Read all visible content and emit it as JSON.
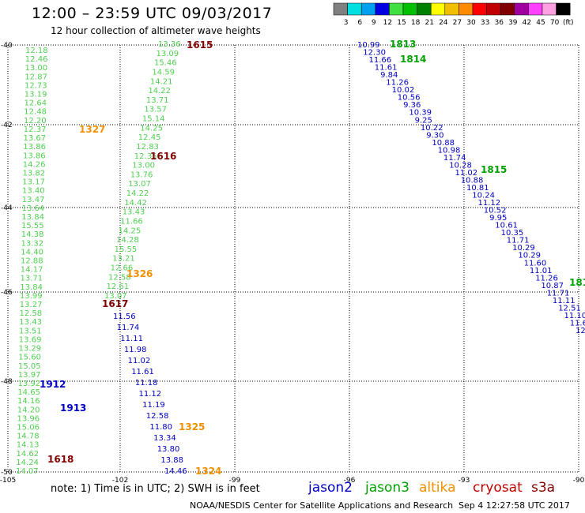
{
  "header": {
    "title": "12:00 – 23:59 UTC 09/03/2017",
    "subtitle": "12 hour collection of altimeter wave heights"
  },
  "color_scale": {
    "unit": "(ft)",
    "bins": [
      {
        "label": "3",
        "color": "#808080"
      },
      {
        "label": "6",
        "color": "#00e0e0"
      },
      {
        "label": "9",
        "color": "#00a0f0"
      },
      {
        "label": "12",
        "color": "#0000e0"
      },
      {
        "label": "15",
        "color": "#40e040"
      },
      {
        "label": "18",
        "color": "#00c000"
      },
      {
        "label": "21",
        "color": "#008000"
      },
      {
        "label": "24",
        "color": "#ffff00"
      },
      {
        "label": "27",
        "color": "#f0c000"
      },
      {
        "label": "30",
        "color": "#ff8c00"
      },
      {
        "label": "33",
        "color": "#ff0000"
      },
      {
        "label": "36",
        "color": "#c00000"
      },
      {
        "label": "39",
        "color": "#800000"
      },
      {
        "label": "42",
        "color": "#a000a0"
      },
      {
        "label": "45",
        "color": "#ff40ff"
      },
      {
        "label": "70",
        "color": "#ffa0e0"
      },
      {
        "label": "",
        "color": "#000000"
      }
    ]
  },
  "axes": {
    "lat_labels": [
      "-40",
      "-42",
      "-44",
      "-46",
      "-48",
      "-50"
    ],
    "lon_labels": [
      "-105",
      "-102",
      "-99",
      "-96",
      "-93",
      "-90"
    ]
  },
  "colors": {
    "jason2": "#0000c0",
    "jason3": "#00a000",
    "altika": "#f09000",
    "cryosat": "#c00000",
    "s3a": "#800000",
    "light": "#50d050"
  },
  "tracks": {
    "t1": [
      "12.18",
      "12.46",
      "13.00",
      "12.87",
      "12.73",
      "13.19",
      "12.64",
      "12.48",
      "12.20",
      "12.37",
      "13.67",
      "13.86",
      "13.86",
      "14.26",
      "13.82",
      "13.17",
      "13.40",
      "13.47",
      "13.64",
      "13.84",
      "15.55",
      "14.38",
      "13.32",
      "14.40",
      "12.88",
      "14.17",
      "13.71",
      "13.84",
      "13.99",
      "13.27",
      "12.58",
      "13.43",
      "13.51",
      "13.69",
      "13.29",
      "15.60",
      "15.05",
      "13.97",
      "13.92",
      "14.65",
      "14.16",
      "14.20",
      "13.96",
      "15.06",
      "14.78",
      "14.13",
      "14.62",
      "14.24",
      "14.07"
    ],
    "t2": [
      "13.36",
      "13.09",
      "15.46",
      "14.59",
      "14.21",
      "14.22",
      "13.71",
      "13.57",
      "15.14",
      "14.25",
      "12.45",
      "12.83",
      "12.35",
      "13.00",
      "13.76",
      "13.07",
      "14.22",
      "14.42",
      "13.43",
      "11.66",
      "14.25",
      "14.28",
      "15.55",
      "13.21",
      "12.66",
      "12.58",
      "12.61",
      "13.07",
      "11.56",
      "11.74",
      "11.11",
      "11.98",
      "11.02",
      "11.61",
      "11.18",
      "11.12",
      "11.19",
      "12.58",
      "11.80",
      "13.34",
      "13.80",
      "13.88",
      "14.46"
    ],
    "t3": [
      "10.99",
      "12.30",
      "11.66",
      "11.61",
      "9.84",
      "11.26",
      "10.02",
      "10.56",
      "9.36",
      "10.39",
      "9.25",
      "10.22",
      "9.30",
      "10.88",
      "10.98",
      "11.74",
      "10.28",
      "11.02",
      "10.88",
      "10.81",
      "10.24",
      "11.12",
      "10.52",
      "9.95",
      "10.61",
      "10.35",
      "11.71",
      "10.29",
      "10.29",
      "11.60",
      "11.01",
      "11.26",
      "10.87",
      "11.71",
      "11.11",
      "12.51",
      "11.10",
      "11.6",
      "12"
    ]
  },
  "passes": {
    "p1615": "1615",
    "p1616": "1616",
    "p1617": "1617",
    "p1618": "1618",
    "p1327": "1327",
    "p1326": "1326",
    "p1325": "1325",
    "p1324": "1324",
    "p1813": "1813",
    "p1814": "1814",
    "p1815": "1815",
    "p181x": "181",
    "p1912": "1912",
    "p1913": "1913"
  },
  "footer": {
    "note": "note: 1) Time is in UTC; 2) SWH is in feet",
    "credit": "NOAA/NESDIS Center for Satellite Applications and Research",
    "timestamp": "Sep  4 12:27:58 UTC 2017"
  },
  "legend": {
    "jason2": "jason2",
    "jason3": "jason3",
    "altika": "altika",
    "cryosat": "cryosat",
    "s3a": "s3a"
  }
}
